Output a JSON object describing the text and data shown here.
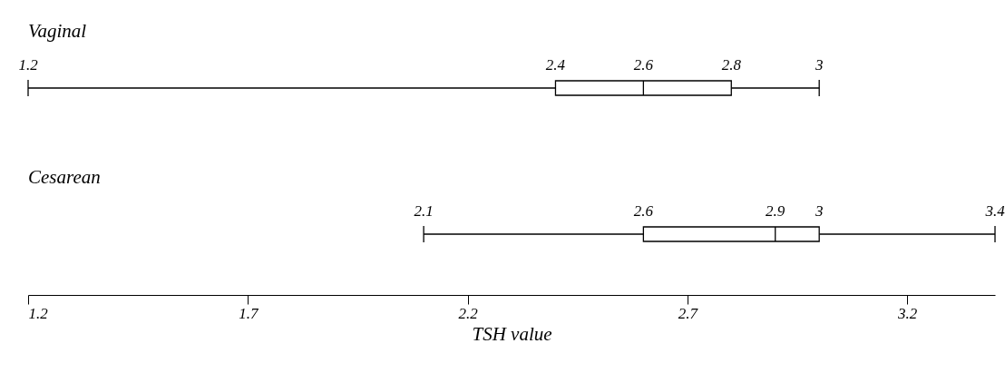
{
  "chart_data": {
    "type": "box",
    "orientation": "horizontal",
    "categories": [
      "Vaginal",
      "Cesarean"
    ],
    "boxes": [
      {
        "low": 1.2,
        "q1": 2.4,
        "median": 2.6,
        "q3": 2.8,
        "high": 3
      },
      {
        "low": 2.1,
        "q1": 2.6,
        "median": 2.9,
        "q3": 3,
        "high": 3.4
      }
    ],
    "xlim": [
      1.2,
      3.4
    ],
    "xticks": [
      1.2,
      1.7,
      2.2,
      2.7,
      3.2
    ],
    "xlabel": "TSH value",
    "grid": false,
    "annotations": [
      {
        "text": "1.2",
        "x": 1.2,
        "y": "Vaginal"
      },
      {
        "text": "2.4",
        "x": 2.4,
        "y": "Vaginal"
      },
      {
        "text": "2.6",
        "x": 2.6,
        "y": "Vaginal"
      },
      {
        "text": "2.8",
        "x": 2.8,
        "y": "Vaginal"
      },
      {
        "text": "3",
        "x": 3,
        "y": "Vaginal"
      },
      {
        "text": "2.1",
        "x": 2.1,
        "y": "Cesarean"
      },
      {
        "text": "2.6",
        "x": 2.6,
        "y": "Cesarean"
      },
      {
        "text": "2.9",
        "x": 2.9,
        "y": "Cesarean"
      },
      {
        "text": "3",
        "x": 3,
        "y": "Cesarean"
      },
      {
        "text": "3.4",
        "x": 3.4,
        "y": "Cesarean"
      }
    ]
  }
}
